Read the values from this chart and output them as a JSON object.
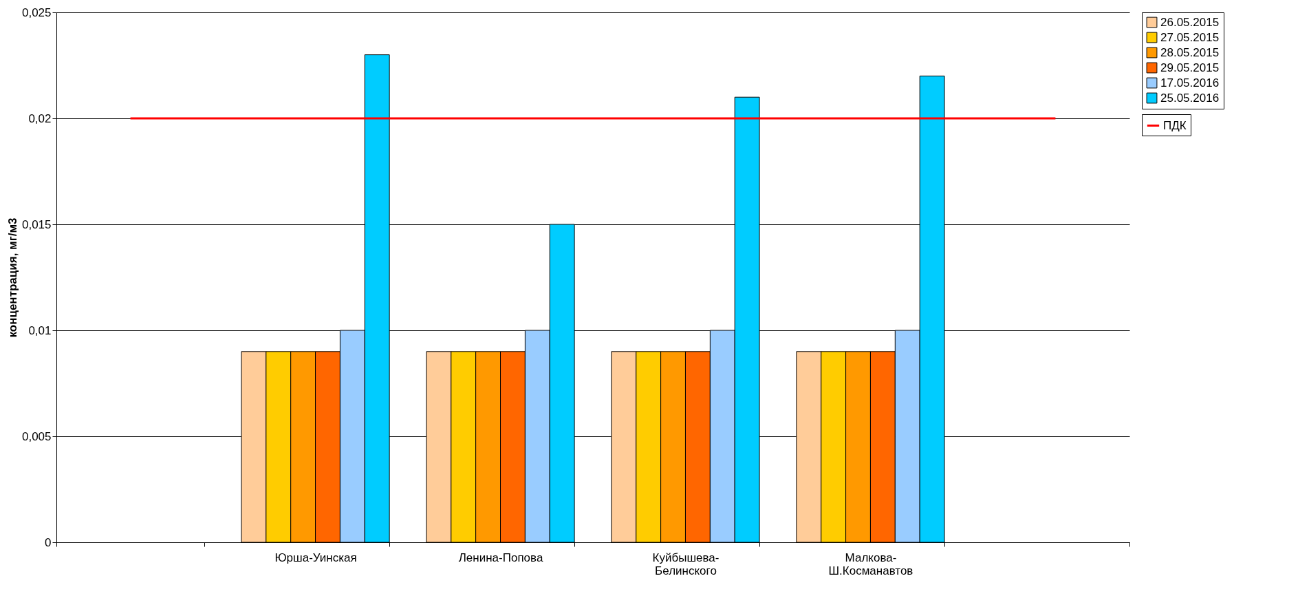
{
  "chart_data": {
    "type": "bar",
    "ylabel": "концентрация, мг/м3",
    "categories": [
      null,
      "Юрша-Уинская",
      "Ленина-Попова",
      "Куйбышева-Белинского",
      "Малкова-Ш.Косманавтов",
      null
    ],
    "series": [
      {
        "name": "26.05.2015",
        "color": "#ffcc99",
        "values": [
          null,
          0.009,
          0.009,
          0.009,
          0.009,
          null
        ]
      },
      {
        "name": "27.05.2015",
        "color": "#ffcc00",
        "values": [
          null,
          0.009,
          0.009,
          0.009,
          0.009,
          null
        ]
      },
      {
        "name": "28.05.2015",
        "color": "#ff9900",
        "values": [
          null,
          0.009,
          0.009,
          0.009,
          0.009,
          null
        ]
      },
      {
        "name": "29.05.2015",
        "color": "#ff6600",
        "values": [
          null,
          0.009,
          0.009,
          0.009,
          0.009,
          null
        ]
      },
      {
        "name": "17.05.2016",
        "color": "#99ccff",
        "values": [
          null,
          0.01,
          0.01,
          0.01,
          0.01,
          null
        ]
      },
      {
        "name": "25.05.2016",
        "color": "#00ccff",
        "values": [
          null,
          0.023,
          0.015,
          0.021,
          0.022,
          null
        ]
      },
      {
        "name": "ПДК",
        "type": "line",
        "color": "#ff0000",
        "values": [
          0.02,
          0.02,
          0.02,
          0.02,
          0.02,
          0.02
        ]
      }
    ],
    "ylim": [
      0,
      0.025
    ],
    "yticks": [
      {
        "value": 0,
        "label": "0"
      },
      {
        "value": 0.005,
        "label": "0,005"
      },
      {
        "value": 0.01,
        "label": "0,01"
      },
      {
        "value": 0.015,
        "label": "0,015"
      },
      {
        "value": 0.02,
        "label": "0,02"
      },
      {
        "value": 0.025,
        "label": "0,025"
      }
    ],
    "grid": "y",
    "legend": "right"
  }
}
